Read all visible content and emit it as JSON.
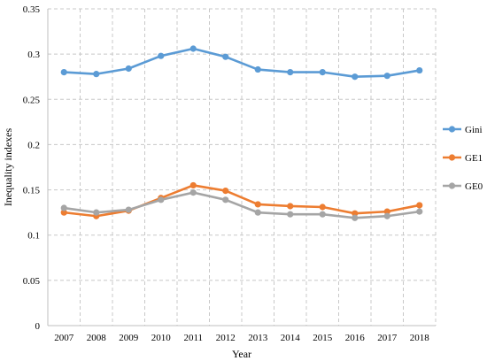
{
  "chart_data": {
    "type": "line",
    "title": "",
    "xlabel": "Year",
    "ylabel": "Inequality indexes",
    "x": [
      "2007",
      "2008",
      "2009",
      "2010",
      "2011",
      "2012",
      "2013",
      "2014",
      "2015",
      "2016",
      "2017",
      "2018"
    ],
    "ylim": [
      0,
      0.35
    ],
    "yticks": [
      "0",
      "0.05",
      "0.1",
      "0.15",
      "0.2",
      "0.25",
      "0.3",
      "0.35"
    ],
    "grid": true,
    "legend_position": "right",
    "series": [
      {
        "name": "Gini",
        "color": "#5b9bd5",
        "values": [
          0.28,
          0.278,
          0.284,
          0.298,
          0.306,
          0.297,
          0.283,
          0.28,
          0.28,
          0.275,
          0.276,
          0.282
        ]
      },
      {
        "name": "GE1",
        "color": "#ed7d31",
        "values": [
          0.125,
          0.121,
          0.127,
          0.141,
          0.155,
          0.149,
          0.134,
          0.132,
          0.131,
          0.124,
          0.126,
          0.133
        ]
      },
      {
        "name": "GE0",
        "color": "#a5a5a5",
        "values": [
          0.13,
          0.125,
          0.128,
          0.139,
          0.147,
          0.139,
          0.125,
          0.123,
          0.123,
          0.119,
          0.121,
          0.126
        ]
      }
    ]
  }
}
